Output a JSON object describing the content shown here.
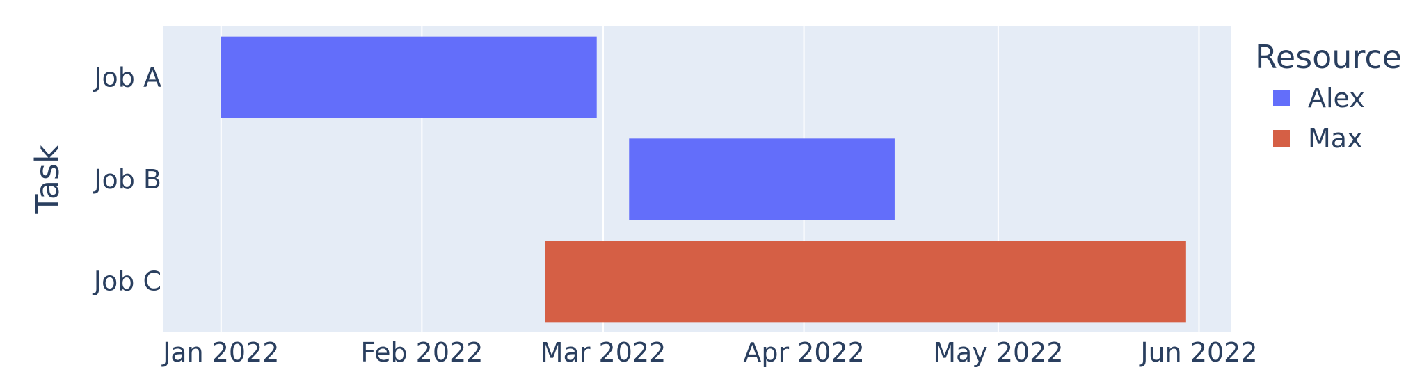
{
  "chart_data": {
    "type": "bar",
    "subtype": "timeline",
    "title": "",
    "xlabel": "",
    "ylabel": "Task",
    "xlim": [
      "2021-12-23",
      "2022-06-06"
    ],
    "grid": true,
    "categories": [
      "Job A",
      "Job B",
      "Job C"
    ],
    "x_ticks": [
      {
        "date": "2022-01-01",
        "label": "Jan 2022"
      },
      {
        "date": "2022-02-01",
        "label": "Feb 2022"
      },
      {
        "date": "2022-03-01",
        "label": "Mar 2022"
      },
      {
        "date": "2022-04-01",
        "label": "Apr 2022"
      },
      {
        "date": "2022-05-01",
        "label": "May 2022"
      },
      {
        "date": "2022-06-01",
        "label": "Jun 2022"
      }
    ],
    "series": [
      {
        "name": "Alex",
        "color": "#636efa",
        "tasks": [
          {
            "task": "Job A",
            "start": "2022-01-01",
            "end": "2022-02-28"
          },
          {
            "task": "Job B",
            "start": "2022-03-05",
            "end": "2022-04-15"
          }
        ]
      },
      {
        "name": "Max",
        "color": "#d55f45",
        "tasks": [
          {
            "task": "Job C",
            "start": "2022-02-20",
            "end": "2022-05-30"
          }
        ]
      }
    ],
    "legend": {
      "title": "Resource",
      "position": "right"
    }
  }
}
